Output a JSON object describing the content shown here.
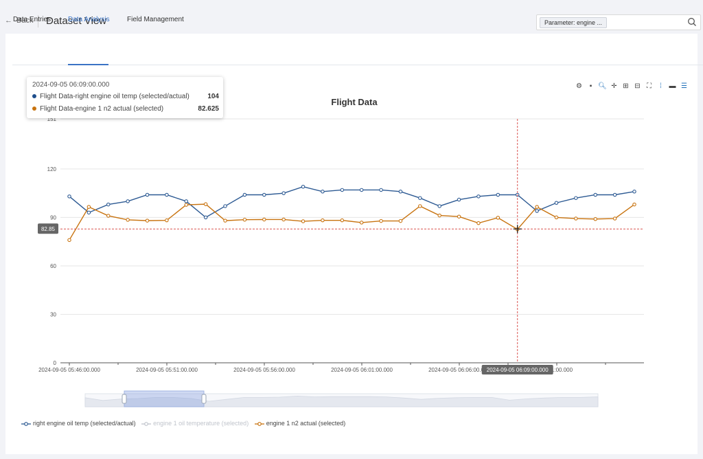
{
  "header": {
    "back_label": "Back",
    "title": "Dataset View",
    "search_chip": "Parameter: engine ..."
  },
  "tabs": [
    {
      "label": "Data Entries",
      "active": false
    },
    {
      "label": "Data Analysis",
      "active": true
    },
    {
      "label": "Field Management",
      "active": false
    }
  ],
  "toolbar_icons": [
    "gear-icon",
    "camera-icon",
    "zoom-icon",
    "move-icon",
    "zoom-in-icon",
    "zoom-out-icon",
    "fit-icon",
    "restore-icon",
    "line-style-icon",
    "series-icon"
  ],
  "tooltip": {
    "time": "2024-09-05 06:09:00.000",
    "rows": [
      {
        "label": "Flight Data-right engine oil temp (selected/actual)",
        "value": "104",
        "color": "#1f4e8c"
      },
      {
        "label": "Flight Data-engine 1 n2 actual (selected)",
        "value": "82.625",
        "color": "#c8730f"
      }
    ]
  },
  "chart_data": {
    "type": "line",
    "title": "Flight Data",
    "yticks": [
      "0",
      "30",
      "60",
      "90",
      "120",
      "151"
    ],
    "ylim": [
      0,
      151
    ],
    "xticks": [
      "2024-09-05 05:46:00.000",
      "2024-09-05 05:51:00.000",
      "2024-09-05 05:56:00.000",
      "2024-09-05 06:01:00.000",
      "2024-09-05 06:06:00.000",
      "06:11:00.000"
    ],
    "x_start": "2024-09-05 05:46:00.000",
    "x_step": "30s",
    "series": [
      {
        "name": "right engine oil temp (selected/actual)",
        "color": "#2d5a93",
        "values": [
          103,
          93,
          98,
          100,
          104,
          104,
          100,
          90,
          97,
          104,
          104,
          105,
          109,
          106,
          107,
          107,
          107,
          106,
          102,
          97,
          101,
          103,
          104,
          104,
          94,
          99,
          102,
          104,
          104,
          106
        ]
      },
      {
        "name": "engine 1 oil temperature (selected)",
        "color": "#c0c4cc",
        "values": [],
        "hidden": true
      },
      {
        "name": "engine 1 n2 actual (selected)",
        "color": "#c8730f",
        "values": [
          76,
          96.5,
          91,
          88.5,
          88,
          88.2,
          97.8,
          98.2,
          88,
          88.6,
          88.7,
          88.7,
          87.6,
          88.2,
          88.2,
          86.8,
          87.8,
          87.8,
          97,
          91.2,
          90.5,
          86.5,
          89.8,
          82.625,
          96.5,
          90,
          89.3,
          89,
          89.3,
          98
        ]
      }
    ],
    "crosshair": {
      "x_label": "2024-09-05 06:09:00.000",
      "y_label": "82.85"
    }
  }
}
